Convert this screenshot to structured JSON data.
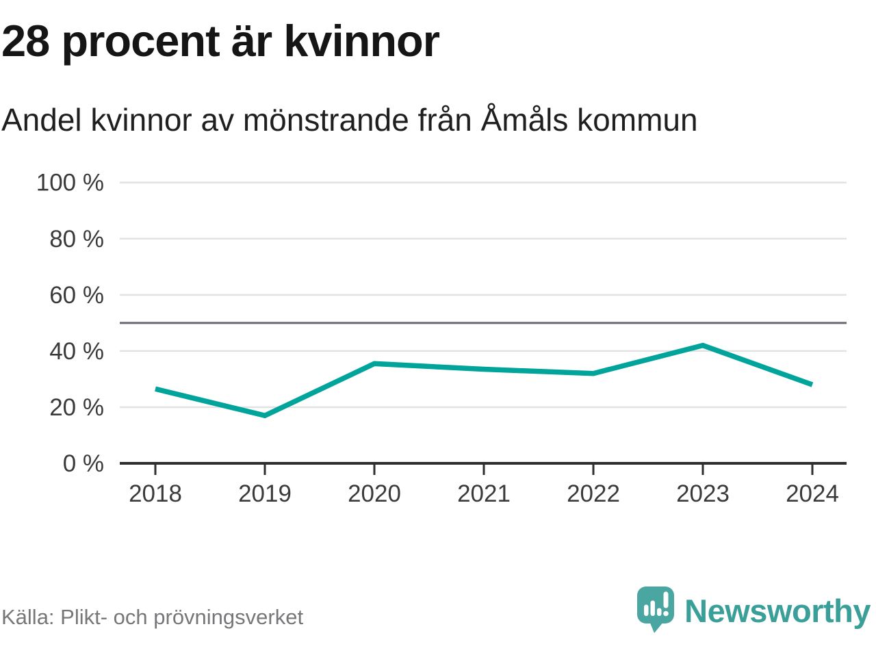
{
  "header": {
    "title": "28 procent är kvinnor",
    "subtitle": "Andel kvinnor av mönstrande från Åmåls kommun"
  },
  "chart_data": {
    "type": "line",
    "title": "28 procent är kvinnor",
    "subtitle": "Andel kvinnor av mönstrande från Åmåls kommun",
    "categories": [
      "2018",
      "2019",
      "2020",
      "2021",
      "2022",
      "2023",
      "2024"
    ],
    "series": [
      {
        "name": "Andel kvinnor av mönstrande",
        "values": [
          26.5,
          17,
          35.5,
          33.5,
          32,
          42,
          28
        ]
      }
    ],
    "unit": "%",
    "ylim": [
      0,
      100
    ],
    "y_tick_values": [
      0,
      20,
      40,
      60,
      80,
      100
    ],
    "y_tick_labels": [
      "0 %",
      "20 %",
      "40 %",
      "60 %",
      "80 %",
      "100 %"
    ],
    "reference_line": {
      "value": 50
    },
    "grid": true,
    "legend": "none",
    "colors": {
      "line": "#00a49b",
      "grid": "#e2e2e2",
      "reference_line": "#68686f",
      "axis": "#2e2e2e",
      "tick_text": "#3a3a3a"
    }
  },
  "footer": {
    "source": "Källa: Plikt- och prövningsverket",
    "brand": {
      "name": "Newsworthy",
      "icon": "newsworthy-speech-bubble-chart-icon",
      "text_color": "#3b9f99",
      "icon_color": "#4aa6a1"
    }
  }
}
